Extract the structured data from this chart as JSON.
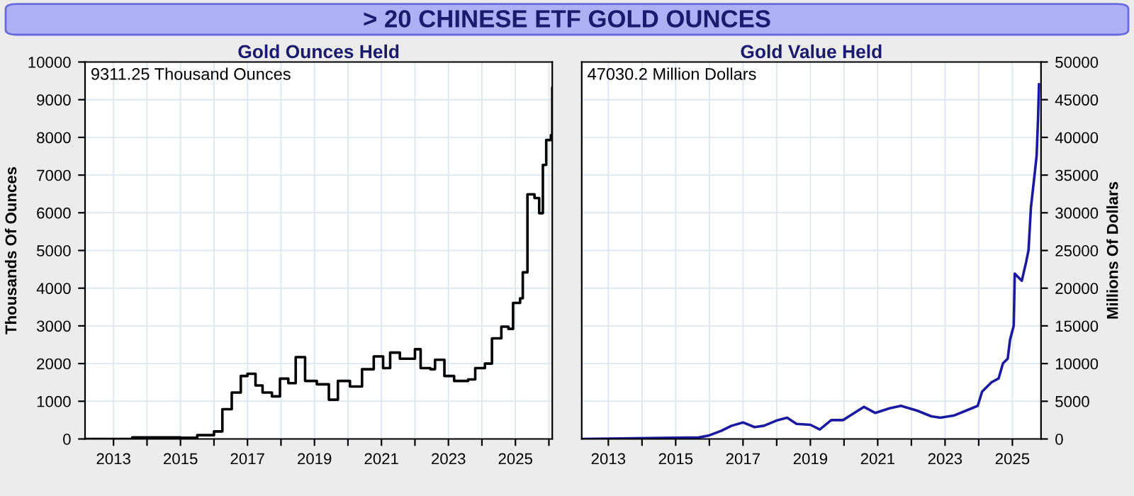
{
  "chart_data": [
    {
      "type": "step",
      "title": "> 20 CHINESE ETF GOLD OUNCES",
      "subtitle": "Gold Ounces Held",
      "ylabel": "Thousands Of Ounces",
      "annotations": [
        "9311.25 Thousand Ounces"
      ],
      "series": [
        {
          "color": "#000000",
          "x": [
            2012.15,
            2013.56,
            2015.0,
            2015.5,
            2016.0,
            2016.25,
            2016.53,
            2016.8,
            2017.0,
            2017.24,
            2017.45,
            2017.73,
            2017.97,
            2018.22,
            2018.44,
            2018.72,
            2019.07,
            2019.43,
            2019.7,
            2020.06,
            2020.42,
            2020.77,
            2021.05,
            2021.26,
            2021.55,
            2022.0,
            2022.17,
            2022.46,
            2022.6,
            2022.88,
            2023.17,
            2023.59,
            2023.8,
            2024.09,
            2024.3,
            2024.58,
            2024.79,
            2024.93,
            2025.14,
            2025.22,
            2025.36,
            2025.57,
            2025.71,
            2025.82,
            2025.92,
            2026.06,
            2026.1
          ],
          "values": [
            0,
            40,
            30,
            100,
            200,
            790,
            1230,
            1670,
            1730,
            1420,
            1230,
            1130,
            1600,
            1480,
            2170,
            1540,
            1450,
            1040,
            1540,
            1390,
            1850,
            2190,
            1880,
            2290,
            2130,
            2380,
            1880,
            1850,
            2100,
            1670,
            1540,
            1580,
            1880,
            2000,
            2670,
            2980,
            2920,
            3610,
            3730,
            4420,
            6490,
            6390,
            5990,
            7270,
            7930,
            8060,
            9310
          ]
        }
      ],
      "xlim": [
        2012.15,
        2026.1
      ],
      "ylim": [
        0,
        10000
      ],
      "xticks": [
        2013,
        {
          "value": 2014,
          "label": null
        },
        2015,
        {
          "value": 2016,
          "label": null
        },
        2017,
        {
          "value": 2018,
          "label": null
        },
        2019,
        {
          "value": 2020,
          "label": null
        },
        2021,
        {
          "value": 2022,
          "label": null
        },
        2023,
        {
          "value": 2024,
          "label": null
        },
        2025,
        {
          "value": 2026,
          "label": null
        }
      ],
      "yticks": [
        0,
        1000,
        2000,
        3000,
        4000,
        5000,
        6000,
        7000,
        8000,
        9000,
        10000
      ],
      "grid": true
    },
    {
      "type": "line",
      "subtitle": "Gold Value Held",
      "ylabel": "Millions Of Dollars",
      "annotations": [
        "47030.2 Million Dollars"
      ],
      "series": [
        {
          "color": "#1a1aa0",
          "x": [
            2012.21,
            2015.69,
            2015.97,
            2016.38,
            2016.66,
            2017.0,
            2017.34,
            2017.62,
            2018.03,
            2018.31,
            2018.59,
            2019.0,
            2019.28,
            2019.62,
            2019.97,
            2020.24,
            2020.59,
            2020.93,
            2021.35,
            2021.69,
            2022.17,
            2022.59,
            2022.86,
            2023.28,
            2023.69,
            2023.97,
            2024.1,
            2024.38,
            2024.59,
            2024.72,
            2024.86,
            2024.93,
            2025.04,
            2025.07,
            2025.28,
            2025.41,
            2025.48,
            2025.55,
            2025.66,
            2025.72,
            2025.76,
            2025.79
          ],
          "values": [
            0,
            200,
            440,
            1130,
            1750,
            2190,
            1570,
            1750,
            2500,
            2820,
            2000,
            1880,
            1250,
            2500,
            2500,
            3260,
            4260,
            3450,
            4070,
            4390,
            3760,
            3010,
            2820,
            3130,
            3880,
            4390,
            6270,
            7520,
            8020,
            10030,
            10650,
            13160,
            15040,
            21930,
            20990,
            23500,
            25060,
            30700,
            35090,
            37590,
            42290,
            47030
          ]
        }
      ],
      "xlim": [
        2012.21,
        2025.85
      ],
      "ylim": [
        0,
        50000
      ],
      "xticks": [
        2013,
        {
          "value": 2014,
          "label": null
        },
        2015,
        {
          "value": 2016,
          "label": null
        },
        2017,
        {
          "value": 2018,
          "label": null
        },
        2019,
        {
          "value": 2020,
          "label": null
        },
        2021,
        {
          "value": 2022,
          "label": null
        },
        2023,
        {
          "value": 2024,
          "label": null
        },
        2025
      ],
      "yticks": [
        0,
        5000,
        10000,
        15000,
        20000,
        25000,
        30000,
        35000,
        40000,
        45000,
        50000
      ],
      "grid": true
    }
  ]
}
